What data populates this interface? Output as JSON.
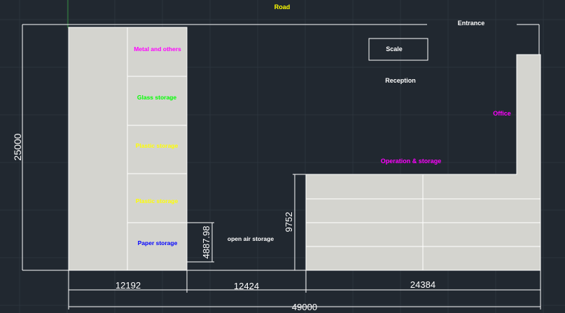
{
  "labels": {
    "road": "Road",
    "entrance": "Entrance",
    "scale": "Scale",
    "reception": "Reception",
    "office": "Office",
    "operation_storage": "Operation & storage",
    "metal": "Metal and others",
    "glass": "Glass storage",
    "plastic_1": "Plastic storage",
    "plastic_2": "Plastic storage",
    "paper": "Paper storage",
    "open_air": "open air storage"
  },
  "dimensions": {
    "overall_width": "49000",
    "overall_height": "25000",
    "dim_left": "12192",
    "dim_middle": "12424",
    "dim_right": "24384",
    "open_air_height": "4887.98",
    "operation_height": "9752"
  },
  "colors": {
    "background": "#212830",
    "building_fill": "#d4d4cf",
    "line": "#ffffff",
    "road_text": "#ffff00",
    "magenta_text": "#ff00ff",
    "green_text": "#00ff00",
    "yellow_text": "#ffff00",
    "blue_text": "#0000ff"
  }
}
